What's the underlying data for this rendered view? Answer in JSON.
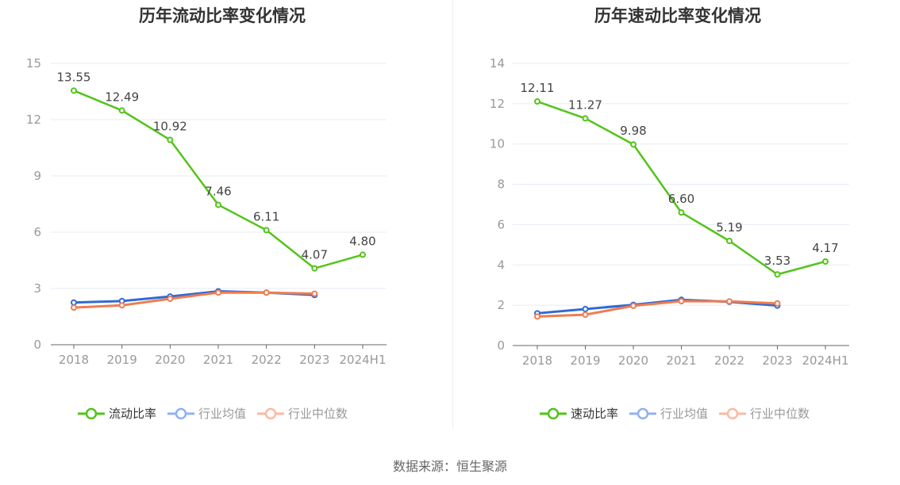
{
  "footer": {
    "source": "数据来源：恒生聚源"
  },
  "colors": {
    "company": "#52c41a",
    "avg": "#2f6bd8",
    "median": "#f07c4f",
    "avg_legend": "#91b0f4",
    "median_legend": "#fdb9a2",
    "grid": "#e6ebf5",
    "axis": "#666666"
  },
  "chart_data": [
    {
      "type": "line",
      "title": "历年流动比率变化情况",
      "categories": [
        "2018",
        "2019",
        "2020",
        "2021",
        "2022",
        "2023",
        "2024H1"
      ],
      "ylim": [
        0,
        15
      ],
      "yticks": [
        "0",
        "3",
        "6",
        "9",
        "12",
        "15"
      ],
      "legend_position": "bottom",
      "series": [
        {
          "name": "流动比率",
          "values": [
            13.55,
            12.49,
            10.92,
            7.46,
            6.11,
            4.07,
            4.8
          ],
          "labels": [
            "13.55",
            "12.49",
            "10.92",
            "7.46",
            "6.11",
            "4.07",
            "4.80"
          ]
        },
        {
          "name": "行业均值",
          "values": [
            2.25,
            2.33,
            2.57,
            2.85,
            2.78,
            2.65,
            null
          ]
        },
        {
          "name": "行业中位数",
          "values": [
            1.98,
            2.1,
            2.45,
            2.78,
            2.78,
            2.72,
            null
          ]
        }
      ]
    },
    {
      "type": "line",
      "title": "历年速动比率变化情况",
      "categories": [
        "2018",
        "2019",
        "2020",
        "2021",
        "2022",
        "2023",
        "2024H1"
      ],
      "ylim": [
        0,
        14
      ],
      "yticks": [
        "0",
        "2",
        "4",
        "6",
        "8",
        "10",
        "12",
        "14"
      ],
      "legend_position": "bottom",
      "series": [
        {
          "name": "速动比率",
          "values": [
            12.11,
            11.27,
            9.98,
            6.6,
            5.19,
            3.53,
            4.17
          ],
          "labels": [
            "12.11",
            "11.27",
            "9.98",
            "6.60",
            "5.19",
            "3.53",
            "4.17"
          ]
        },
        {
          "name": "行业均值",
          "values": [
            1.6,
            1.81,
            2.02,
            2.27,
            2.17,
            1.98,
            null
          ]
        },
        {
          "name": "行业中位数",
          "values": [
            1.44,
            1.53,
            1.97,
            2.2,
            2.19,
            2.09,
            null
          ]
        }
      ]
    }
  ]
}
